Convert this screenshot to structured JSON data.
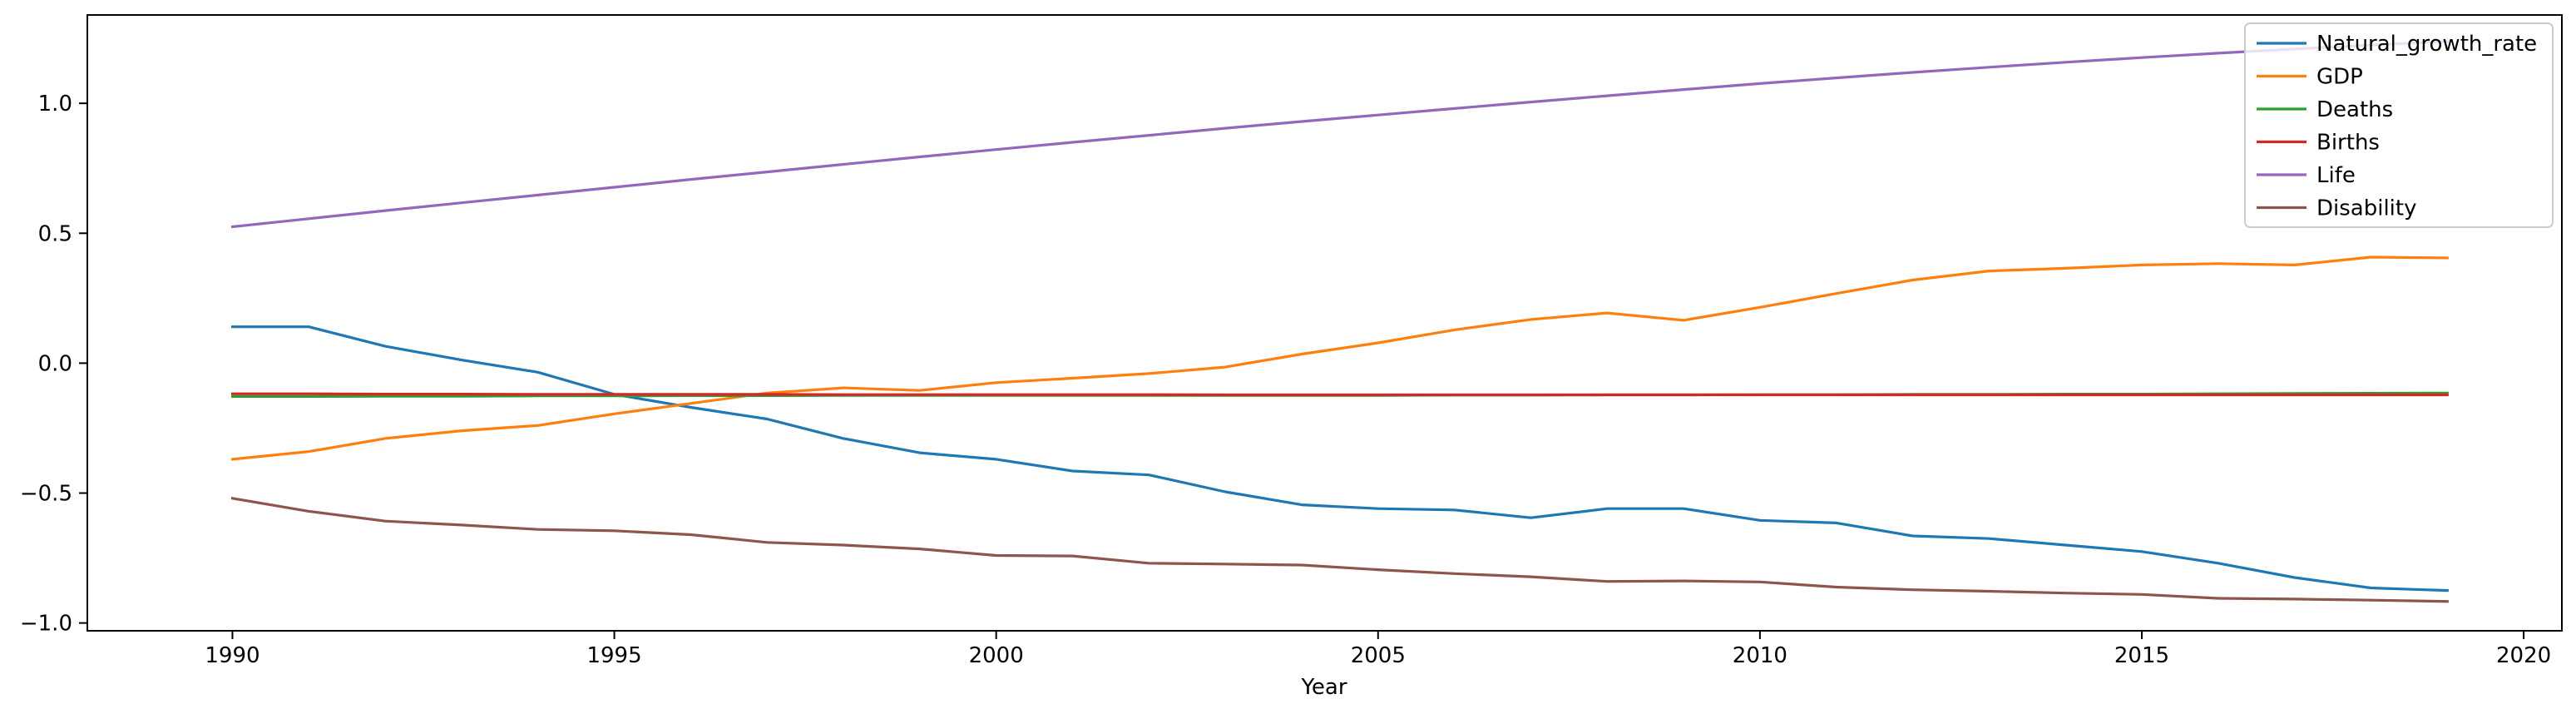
{
  "chart_data": {
    "type": "line",
    "title": "",
    "xlabel": "Year",
    "ylabel": "",
    "xlim": [
      1988.1,
      2020.5
    ],
    "ylim": [
      -1.03,
      1.34
    ],
    "xticks": [
      1990,
      1995,
      2000,
      2005,
      2010,
      2015,
      2020
    ],
    "yticks": [
      -1.0,
      -0.5,
      0.0,
      0.5,
      1.0
    ],
    "ytick_labels": [
      "−1.0",
      "−0.5",
      "0.0",
      "0.5",
      "1.0"
    ],
    "grid": false,
    "legend_position": "top-right",
    "x": [
      1990,
      1991,
      1992,
      1993,
      1994,
      1995,
      1996,
      1997,
      1998,
      1999,
      2000,
      2001,
      2002,
      2003,
      2004,
      2005,
      2006,
      2007,
      2008,
      2009,
      2010,
      2011,
      2012,
      2013,
      2014,
      2015,
      2016,
      2017,
      2018,
      2019
    ],
    "series": [
      {
        "name": "Natural_growth_rate",
        "color": "#1f77b4",
        "values": [
          0.14,
          0.14,
          0.065,
          0.012,
          -0.035,
          -0.12,
          -0.17,
          -0.215,
          -0.29,
          -0.345,
          -0.37,
          -0.415,
          -0.43,
          -0.495,
          -0.545,
          -0.56,
          -0.565,
          -0.595,
          -0.56,
          -0.56,
          -0.605,
          -0.615,
          -0.665,
          -0.675,
          -0.7,
          -0.725,
          -0.77,
          -0.825,
          -0.865,
          -0.875
        ]
      },
      {
        "name": "GDP",
        "color": "#ff7f0e",
        "values": [
          -0.37,
          -0.34,
          -0.29,
          -0.26,
          -0.24,
          -0.195,
          -0.155,
          -0.115,
          -0.095,
          -0.105,
          -0.075,
          -0.058,
          -0.04,
          -0.015,
          0.035,
          0.078,
          0.128,
          0.168,
          0.193,
          0.165,
          0.215,
          0.268,
          0.32,
          0.355,
          0.365,
          0.378,
          0.383,
          0.378,
          0.408,
          0.405
        ]
      },
      {
        "name": "Deaths",
        "color": "#2ca02c",
        "values": [
          -0.128,
          -0.128,
          -0.127,
          -0.127,
          -0.126,
          -0.126,
          -0.125,
          -0.125,
          -0.124,
          -0.124,
          -0.124,
          -0.124,
          -0.124,
          -0.124,
          -0.124,
          -0.124,
          -0.123,
          -0.123,
          -0.122,
          -0.122,
          -0.121,
          -0.121,
          -0.12,
          -0.12,
          -0.119,
          -0.119,
          -0.118,
          -0.117,
          -0.116,
          -0.115
        ]
      },
      {
        "name": "Births",
        "color": "#d62728",
        "values": [
          -0.118,
          -0.118,
          -0.119,
          -0.119,
          -0.12,
          -0.12,
          -0.12,
          -0.12,
          -0.121,
          -0.121,
          -0.121,
          -0.121,
          -0.121,
          -0.122,
          -0.122,
          -0.122,
          -0.122,
          -0.122,
          -0.122,
          -0.122,
          -0.122,
          -0.122,
          -0.122,
          -0.122,
          -0.122,
          -0.122,
          -0.122,
          -0.122,
          -0.122,
          -0.122
        ]
      },
      {
        "name": "Life",
        "color": "#9467bd",
        "values": [
          0.525,
          0.556,
          0.587,
          0.617,
          0.647,
          0.677,
          0.707,
          0.736,
          0.765,
          0.794,
          0.822,
          0.85,
          0.877,
          0.904,
          0.93,
          0.955,
          0.98,
          1.005,
          1.029,
          1.053,
          1.076,
          1.098,
          1.119,
          1.139,
          1.158,
          1.176,
          1.193,
          1.209,
          1.224,
          1.238
        ]
      },
      {
        "name": "Disability",
        "color": "#8c564b",
        "values": [
          -0.52,
          -0.57,
          -0.608,
          -0.623,
          -0.64,
          -0.645,
          -0.66,
          -0.69,
          -0.7,
          -0.715,
          -0.74,
          -0.742,
          -0.77,
          -0.773,
          -0.777,
          -0.795,
          -0.81,
          -0.822,
          -0.84,
          -0.838,
          -0.842,
          -0.862,
          -0.872,
          -0.878,
          -0.885,
          -0.89,
          -0.905,
          -0.908,
          -0.912,
          -0.917
        ]
      }
    ]
  }
}
